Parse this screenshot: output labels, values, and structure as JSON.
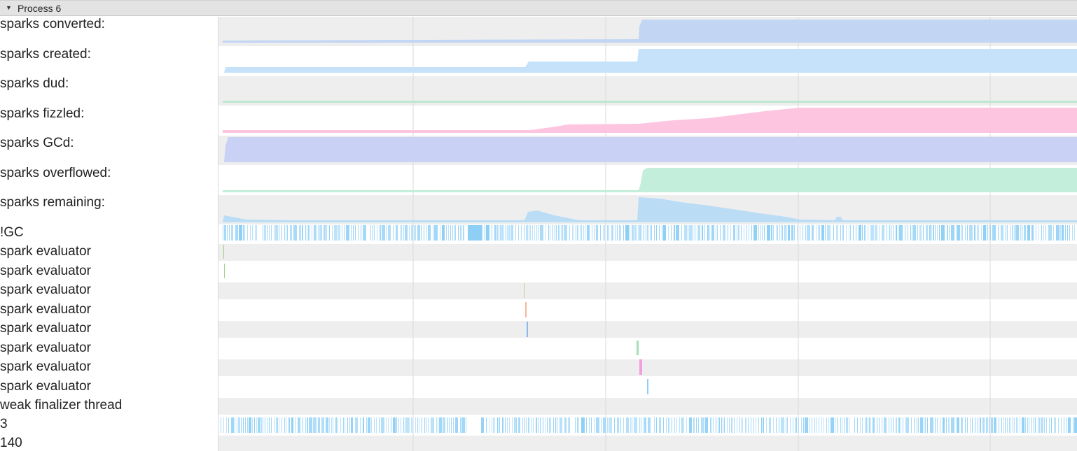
{
  "process": {
    "title": "Process 6"
  },
  "rows": [
    {
      "label": "sparks converted:"
    },
    {
      "label": "sparks created:"
    },
    {
      "label": "sparks dud:"
    },
    {
      "label": "sparks fizzled:"
    },
    {
      "label": "sparks GCd:"
    },
    {
      "label": "sparks overflowed:"
    },
    {
      "label": "sparks remaining:"
    },
    {
      "label": "!GC"
    },
    {
      "label": "spark evaluator"
    },
    {
      "label": "spark evaluator"
    },
    {
      "label": "spark evaluator"
    },
    {
      "label": "spark evaluator"
    },
    {
      "label": "spark evaluator"
    },
    {
      "label": "spark evaluator"
    },
    {
      "label": "spark evaluator"
    },
    {
      "label": "spark evaluator"
    },
    {
      "label": "weak finalizer thread"
    },
    {
      "label": "3"
    },
    {
      "label": "140"
    }
  ],
  "colors": {
    "converted": "#c2d6f4",
    "created": "#c6e2fb",
    "dud": "#bde8cf",
    "fizzled": "#fdc5e0",
    "gcd": "#c9d1f5",
    "overflowed": "#c2eedb",
    "remaining": "#bbdcf5",
    "activity": "#8ecff6",
    "row_alt": "#eeeeee",
    "gridline": "#d9d9d9"
  },
  "evaluator_marks": [
    {
      "color": "#9fd08c"
    },
    {
      "color": "#9fd08c"
    },
    {
      "color": "#b7cf98"
    },
    {
      "color": "#f7b79a"
    },
    {
      "color": "#8bb8ee"
    },
    {
      "color": "#a6e0b8"
    },
    {
      "color": "#f29fe2"
    },
    {
      "color": "#8ecff6"
    }
  ]
}
